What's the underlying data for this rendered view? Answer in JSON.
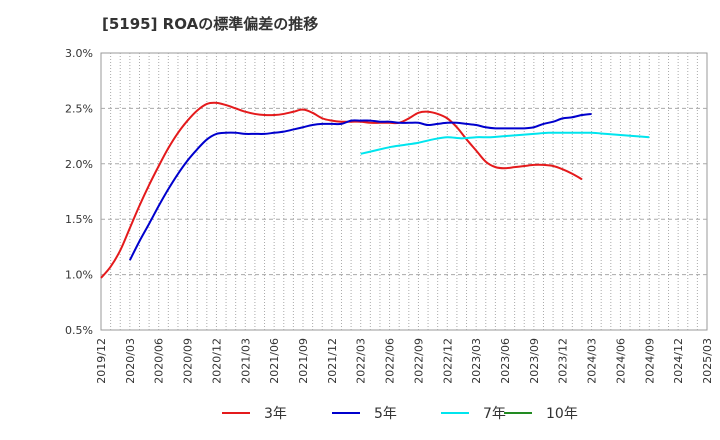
{
  "chart_data": {
    "type": "line",
    "title": "[5195]  ROAの標準偏差の推移",
    "xlabel": "",
    "ylabel": "",
    "ylim": [
      0.5,
      3.0
    ],
    "yticks": [
      "0.5%",
      "1.0%",
      "1.5%",
      "2.0%",
      "2.5%",
      "3.0%"
    ],
    "ytick_values": [
      0.5,
      1.0,
      1.5,
      2.0,
      2.5,
      3.0
    ],
    "x_categories": [
      "2019/12",
      "2020/03",
      "2020/06",
      "2020/09",
      "2020/12",
      "2021/03",
      "2021/06",
      "2021/09",
      "2021/12",
      "2022/03",
      "2022/06",
      "2022/09",
      "2022/12",
      "2023/03",
      "2023/06",
      "2023/09",
      "2023/12",
      "2024/03",
      "2024/06",
      "2024/09",
      "2024/12",
      "2025/03"
    ],
    "grid": true,
    "legend_position": "bottom",
    "series": [
      {
        "name": "3年",
        "color": "#e41a1c",
        "points": [
          [
            0,
            0.97
          ],
          [
            0.33,
            1.07
          ],
          [
            0.67,
            1.22
          ],
          [
            1,
            1.42
          ],
          [
            1.33,
            1.62
          ],
          [
            1.67,
            1.81
          ],
          [
            2,
            1.98
          ],
          [
            2.33,
            2.14
          ],
          [
            2.67,
            2.28
          ],
          [
            3,
            2.39
          ],
          [
            3.33,
            2.48
          ],
          [
            3.67,
            2.54
          ],
          [
            4,
            2.55
          ],
          [
            4.33,
            2.53
          ],
          [
            4.67,
            2.5
          ],
          [
            5,
            2.47
          ],
          [
            5.33,
            2.45
          ],
          [
            5.67,
            2.44
          ],
          [
            6,
            2.44
          ],
          [
            6.33,
            2.45
          ],
          [
            6.67,
            2.47
          ],
          [
            7,
            2.49
          ],
          [
            7.33,
            2.46
          ],
          [
            7.67,
            2.41
          ],
          [
            8,
            2.39
          ],
          [
            8.33,
            2.38
          ],
          [
            8.67,
            2.38
          ],
          [
            9,
            2.38
          ],
          [
            9.33,
            2.37
          ],
          [
            9.67,
            2.37
          ],
          [
            10,
            2.37
          ],
          [
            10.33,
            2.37
          ],
          [
            10.67,
            2.41
          ],
          [
            11,
            2.46
          ],
          [
            11.33,
            2.47
          ],
          [
            11.67,
            2.45
          ],
          [
            12,
            2.41
          ],
          [
            12.33,
            2.33
          ],
          [
            12.67,
            2.22
          ],
          [
            13,
            2.12
          ],
          [
            13.33,
            2.02
          ],
          [
            13.67,
            1.97
          ],
          [
            14,
            1.96
          ],
          [
            14.33,
            1.97
          ],
          [
            14.67,
            1.98
          ],
          [
            15,
            1.99
          ],
          [
            15.33,
            1.99
          ],
          [
            15.67,
            1.98
          ],
          [
            16,
            1.95
          ],
          [
            16.33,
            1.91
          ],
          [
            16.67,
            1.86
          ]
        ]
      },
      {
        "name": "5年",
        "color": "#0000cd",
        "points": [
          [
            1,
            1.13
          ],
          [
            1.33,
            1.3
          ],
          [
            1.67,
            1.46
          ],
          [
            2,
            1.62
          ],
          [
            2.33,
            1.77
          ],
          [
            2.67,
            1.91
          ],
          [
            3,
            2.03
          ],
          [
            3.33,
            2.13
          ],
          [
            3.67,
            2.22
          ],
          [
            4,
            2.27
          ],
          [
            4.33,
            2.28
          ],
          [
            4.67,
            2.28
          ],
          [
            5,
            2.27
          ],
          [
            5.33,
            2.27
          ],
          [
            5.67,
            2.27
          ],
          [
            6,
            2.28
          ],
          [
            6.33,
            2.29
          ],
          [
            6.67,
            2.31
          ],
          [
            7,
            2.33
          ],
          [
            7.33,
            2.35
          ],
          [
            7.67,
            2.36
          ],
          [
            8,
            2.36
          ],
          [
            8.33,
            2.36
          ],
          [
            8.67,
            2.39
          ],
          [
            9,
            2.39
          ],
          [
            9.33,
            2.39
          ],
          [
            9.67,
            2.38
          ],
          [
            10,
            2.38
          ],
          [
            10.33,
            2.37
          ],
          [
            10.67,
            2.37
          ],
          [
            11,
            2.37
          ],
          [
            11.33,
            2.35
          ],
          [
            11.67,
            2.36
          ],
          [
            12,
            2.37
          ],
          [
            12.33,
            2.37
          ],
          [
            12.67,
            2.36
          ],
          [
            13,
            2.35
          ],
          [
            13.33,
            2.33
          ],
          [
            13.67,
            2.32
          ],
          [
            14,
            2.32
          ],
          [
            14.33,
            2.32
          ],
          [
            14.67,
            2.32
          ],
          [
            15,
            2.33
          ],
          [
            15.33,
            2.36
          ],
          [
            15.67,
            2.38
          ],
          [
            16,
            2.41
          ],
          [
            16.33,
            2.42
          ],
          [
            16.67,
            2.44
          ],
          [
            17,
            2.45
          ]
        ]
      },
      {
        "name": "7年",
        "color": "#00e5ee",
        "points": [
          [
            9,
            2.09
          ],
          [
            9.5,
            2.12
          ],
          [
            10,
            2.15
          ],
          [
            10.5,
            2.17
          ],
          [
            11,
            2.19
          ],
          [
            11.5,
            2.22
          ],
          [
            12,
            2.24
          ],
          [
            12.5,
            2.23
          ],
          [
            13,
            2.24
          ],
          [
            13.5,
            2.24
          ],
          [
            14,
            2.25
          ],
          [
            14.5,
            2.26
          ],
          [
            15,
            2.27
          ],
          [
            15.5,
            2.28
          ],
          [
            16,
            2.28
          ],
          [
            16.5,
            2.28
          ],
          [
            17,
            2.28
          ],
          [
            17.5,
            2.27
          ],
          [
            18,
            2.26
          ],
          [
            18.5,
            2.25
          ],
          [
            19,
            2.24
          ]
        ]
      },
      {
        "name": "10年",
        "color": "#228b22",
        "points": []
      }
    ]
  }
}
